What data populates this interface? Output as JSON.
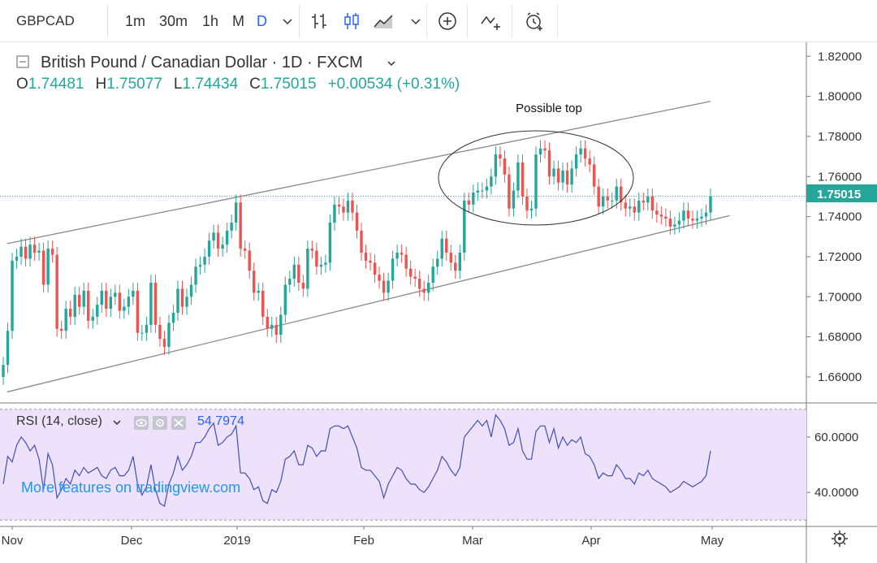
{
  "toolbar": {
    "symbol": "GBPCAD",
    "intervals": [
      "1m",
      "30m",
      "1h",
      "M",
      "D"
    ],
    "active_interval": "D",
    "icons": [
      "chevron-down-icon",
      "bar-chart-icon",
      "candles-icon",
      "area-chart-icon",
      "chevron-down-icon",
      "add-indicator-icon",
      "compare-icon",
      "alert-clock-icon"
    ]
  },
  "legend": {
    "title": "British Pound / Canadian Dollar · 1D · FXCM",
    "o_label": "O",
    "o": "1.74481",
    "h_label": "H",
    "h": "1.75077",
    "l_label": "L",
    "l": "1.74434",
    "c_label": "C",
    "c": "1.75015",
    "change": "+0.00534 (+0.31%)"
  },
  "rsi_legend": {
    "label": "RSI (14, close)",
    "value": "54.7974"
  },
  "promo": "More features on tradingview.com",
  "colors": {
    "up": "#26a69a",
    "down": "#ef5350",
    "rsi_line": "#3f51b5",
    "rsi_band": "#ede1fb",
    "last_price": "#26a69a"
  },
  "chart_data": [
    {
      "type": "candlestick",
      "title": "British Pound / Canadian Dollar · 1D · FXCM",
      "x_tick_labels": [
        "Nov",
        "Dec",
        "2019",
        "Feb",
        "Mar",
        "Apr",
        "May"
      ],
      "y_tick_labels": [
        "1.82000",
        "1.80000",
        "1.78000",
        "1.76000",
        "1.74000",
        "1.72000",
        "1.70000",
        "1.68000",
        "1.66000"
      ],
      "ylim": [
        1.647,
        1.827
      ],
      "last_price": "1.75015",
      "annotation": "Possible top",
      "trend_channel": {
        "upper": [
          [
            "2018-10-30",
            1.7265
          ],
          [
            "2019-05-01",
            1.7975
          ]
        ],
        "lower": [
          [
            "2018-10-30",
            1.6525
          ],
          [
            "2019-05-06",
            1.7405
          ]
        ]
      },
      "close": [
        1.666,
        1.683,
        1.718,
        1.72,
        1.725,
        1.719,
        1.726,
        1.722,
        1.723,
        1.706,
        1.724,
        1.721,
        1.684,
        1.683,
        1.694,
        1.69,
        1.701,
        1.695,
        1.703,
        1.688,
        1.69,
        1.696,
        1.703,
        1.694,
        1.7,
        1.702,
        1.693,
        1.695,
        1.7,
        1.703,
        1.682,
        1.682,
        1.686,
        1.707,
        1.686,
        1.679,
        1.675,
        1.687,
        1.692,
        1.704,
        1.695,
        1.7,
        1.706,
        1.715,
        1.716,
        1.72,
        1.728,
        1.732,
        1.724,
        1.726,
        1.733,
        1.737,
        1.747,
        1.724,
        1.723,
        1.713,
        1.702,
        1.703,
        1.69,
        1.684,
        1.686,
        1.681,
        1.691,
        1.706,
        1.709,
        1.716,
        1.707,
        1.704,
        1.724,
        1.723,
        1.715,
        1.716,
        1.717,
        1.737,
        1.746,
        1.745,
        1.742,
        1.748,
        1.742,
        1.733,
        1.722,
        1.718,
        1.717,
        1.711,
        1.708,
        1.702,
        1.708,
        1.719,
        1.722,
        1.721,
        1.714,
        1.71,
        1.709,
        1.704,
        1.702,
        1.707,
        1.715,
        1.719,
        1.729,
        1.722,
        1.717,
        1.713,
        1.722,
        1.748,
        1.746,
        1.752,
        1.753,
        1.753,
        1.755,
        1.76,
        1.771,
        1.769,
        1.761,
        1.744,
        1.753,
        1.767,
        1.75,
        1.743,
        1.744,
        1.771,
        1.774,
        1.773,
        1.76,
        1.764,
        1.757,
        1.763,
        1.756,
        1.764,
        1.771,
        1.774,
        1.769,
        1.766,
        1.755,
        1.745,
        1.75,
        1.748,
        1.748,
        1.755,
        1.747,
        1.744,
        1.745,
        1.742,
        1.748,
        1.747,
        1.75,
        1.743,
        1.741,
        1.74,
        1.739,
        1.735,
        1.736,
        1.738,
        1.743,
        1.739,
        1.738,
        1.739,
        1.74,
        1.742,
        1.75
      ],
      "rsi_ylim": [
        28,
        72
      ],
      "rsi_bands": [
        30,
        70
      ],
      "rsi_y_tick_labels": [
        "60.0000",
        "40.0000"
      ],
      "rsi": [
        43,
        53,
        51,
        57,
        60,
        58,
        55,
        57,
        52,
        41,
        54,
        50,
        38,
        41,
        45,
        43,
        48,
        46,
        49,
        47,
        48,
        49,
        46,
        45,
        48,
        49,
        46,
        46,
        48,
        53,
        43,
        39,
        42,
        50,
        41,
        36,
        35,
        43,
        47,
        53,
        48,
        50,
        53,
        58,
        58,
        60,
        63,
        65,
        57,
        58,
        60,
        61,
        64,
        47,
        47,
        45,
        41,
        42,
        37,
        36,
        41,
        40,
        44,
        52,
        53,
        55,
        50,
        50,
        57,
        56,
        53,
        55,
        55,
        63,
        64,
        64,
        63,
        64,
        60,
        56,
        49,
        48,
        48,
        46,
        44,
        38,
        43,
        46,
        49,
        48,
        45,
        43,
        43,
        41,
        40,
        42,
        45,
        48,
        53,
        51,
        48,
        46,
        49,
        60,
        62,
        64,
        66,
        64,
        66,
        60,
        68,
        66,
        63,
        57,
        58,
        63,
        55,
        52,
        52,
        62,
        64,
        64,
        58,
        63,
        56,
        60,
        57,
        59,
        58,
        60,
        54,
        53,
        50,
        45,
        47,
        46,
        46,
        50,
        48,
        45,
        45,
        43,
        47,
        46,
        48,
        45,
        44,
        43,
        42,
        40,
        41,
        42,
        44,
        43,
        42,
        43,
        44,
        46,
        55
      ]
    }
  ]
}
